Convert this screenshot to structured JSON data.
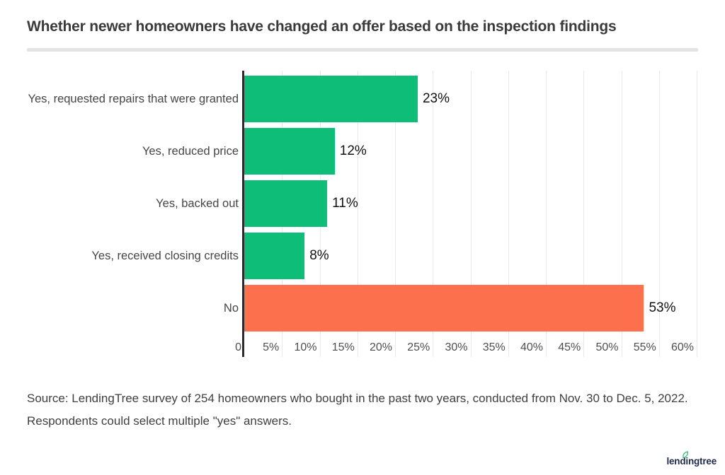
{
  "title": "Whether newer homeowners have changed an offer based on the inspection findings",
  "chart_data": {
    "type": "bar",
    "orientation": "horizontal",
    "title": "Whether newer homeowners have changed an offer based on the inspection findings",
    "categories": [
      "Yes, requested repairs that were granted",
      "Yes, reduced price",
      "Yes, backed out",
      "Yes, received closing credits",
      "No"
    ],
    "values": [
      23,
      12,
      11,
      8,
      53
    ],
    "value_labels": [
      "23%",
      "12%",
      "11%",
      "8%",
      "53%"
    ],
    "bar_colors": [
      "#0EBD77",
      "#0EBD77",
      "#0EBD77",
      "#0EBD77",
      "#FD704D"
    ],
    "xlim": [
      0,
      60
    ],
    "x_ticks": [
      {
        "value": 0,
        "label": "0"
      },
      {
        "value": 5,
        "label": "5%"
      },
      {
        "value": 10,
        "label": "10%"
      },
      {
        "value": 15,
        "label": "15%"
      },
      {
        "value": 20,
        "label": "20%"
      },
      {
        "value": 25,
        "label": "25%"
      },
      {
        "value": 30,
        "label": "30%"
      },
      {
        "value": 35,
        "label": "35%"
      },
      {
        "value": 40,
        "label": "40%"
      },
      {
        "value": 45,
        "label": "45%"
      },
      {
        "value": 50,
        "label": "50%"
      },
      {
        "value": 55,
        "label": "55%"
      },
      {
        "value": 60,
        "label": "60%"
      }
    ],
    "grid": "vertical",
    "legend": "none",
    "axis_color": "#2b2b2b",
    "gridline_color": "#e9e9e9",
    "tick_label_color": "#4e4e4e",
    "category_label_color": "#454545",
    "value_label_color": "#111111"
  },
  "source": {
    "line1": "Source: LendingTree survey of 254 homeowners who bought in the past two years, conducted from Nov. 30 to Dec. 5, 2022.",
    "line2": "Respondents could select multiple \"yes\" answers."
  },
  "footer": {
    "logo_text": "lendingtree",
    "logo_color": "#1C2B4A",
    "leaf_color": "#2EBD76"
  },
  "divider_color": "#E3E3E3"
}
